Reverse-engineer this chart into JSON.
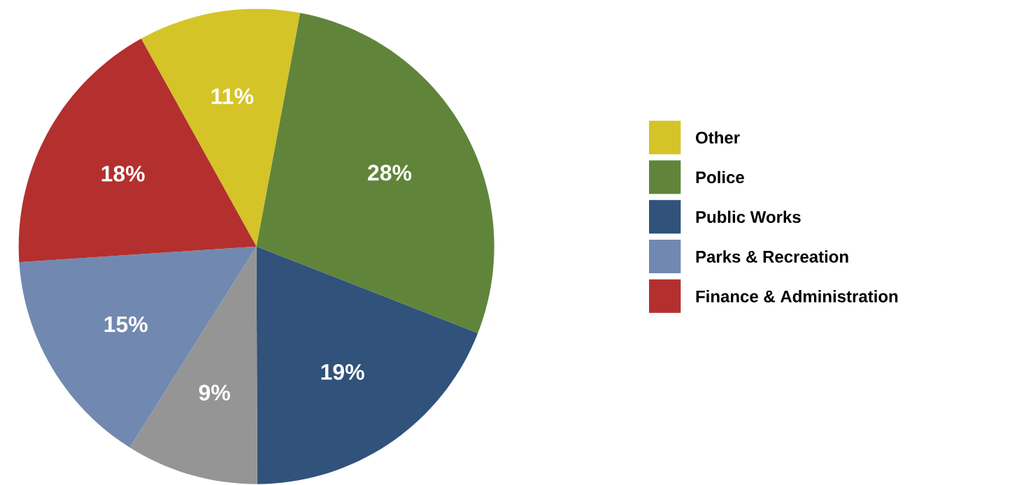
{
  "chart_data": {
    "type": "pie",
    "categories": [
      "Other",
      "Police",
      "Public Works",
      null,
      "Parks & Recreation",
      "Finance & Administration"
    ],
    "values": [
      11,
      28,
      19,
      9,
      15,
      18
    ],
    "value_labels": [
      "11%",
      "28%",
      "19%",
      "9%",
      "15%",
      "18%"
    ],
    "colors": [
      "#d4c428",
      "#60853a",
      "#30527b",
      "#959595",
      "#7189b0",
      "#b3302f"
    ],
    "legend": "right"
  }
}
